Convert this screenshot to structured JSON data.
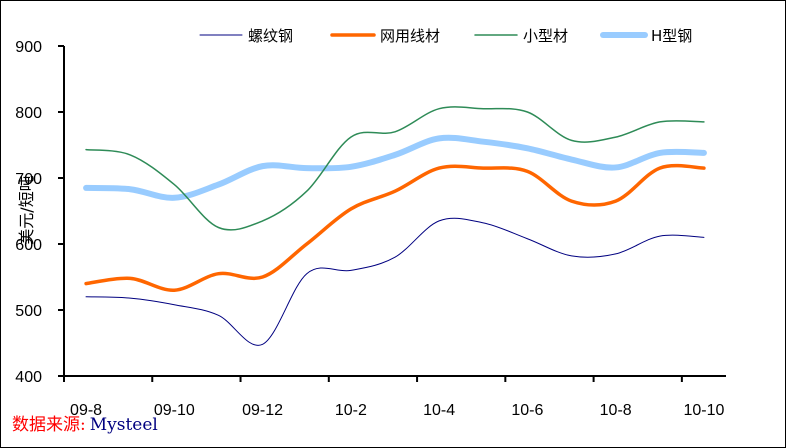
{
  "chart_data": {
    "type": "line",
    "title": "",
    "ylabel": "美元/短吨",
    "xlabel": "",
    "ylim": [
      400,
      900
    ],
    "yticks": [
      "400",
      "500",
      "600",
      "700",
      "800",
      "900"
    ],
    "categories": [
      "09-8",
      "09-9",
      "09-10",
      "09-11",
      "09-12",
      "10-1",
      "10-2",
      "10-3",
      "10-4",
      "10-5",
      "10-6",
      "10-7",
      "10-8",
      "10-9",
      "10-10"
    ],
    "xtick_labels": [
      "09-8",
      "09-10",
      "09-12",
      "10-2",
      "10-4",
      "10-6",
      "10-8",
      "10-10"
    ],
    "legend_position": "top",
    "grid": false,
    "series": [
      {
        "name": "螺纹钢",
        "color": "#000080",
        "width": 1,
        "values": [
          520,
          518,
          508,
          492,
          448,
          555,
          560,
          580,
          635,
          632,
          608,
          582,
          585,
          612,
          610
        ]
      },
      {
        "name": "网用线材",
        "color": "#ff6600",
        "width": 3.5,
        "values": [
          540,
          548,
          530,
          555,
          550,
          600,
          653,
          680,
          715,
          715,
          710,
          665,
          665,
          715,
          715
        ]
      },
      {
        "name": "小型材",
        "color": "#2e8b57",
        "width": 1.5,
        "values": [
          743,
          735,
          690,
          625,
          635,
          680,
          762,
          770,
          805,
          805,
          800,
          757,
          762,
          785,
          785
        ]
      },
      {
        "name": "H型钢",
        "color": "#99ccff",
        "width": 6,
        "values": [
          685,
          683,
          670,
          690,
          718,
          715,
          717,
          735,
          760,
          755,
          745,
          728,
          716,
          738,
          738
        ]
      }
    ]
  },
  "source": {
    "label": "数据来源:",
    "value": "Mysteel"
  }
}
